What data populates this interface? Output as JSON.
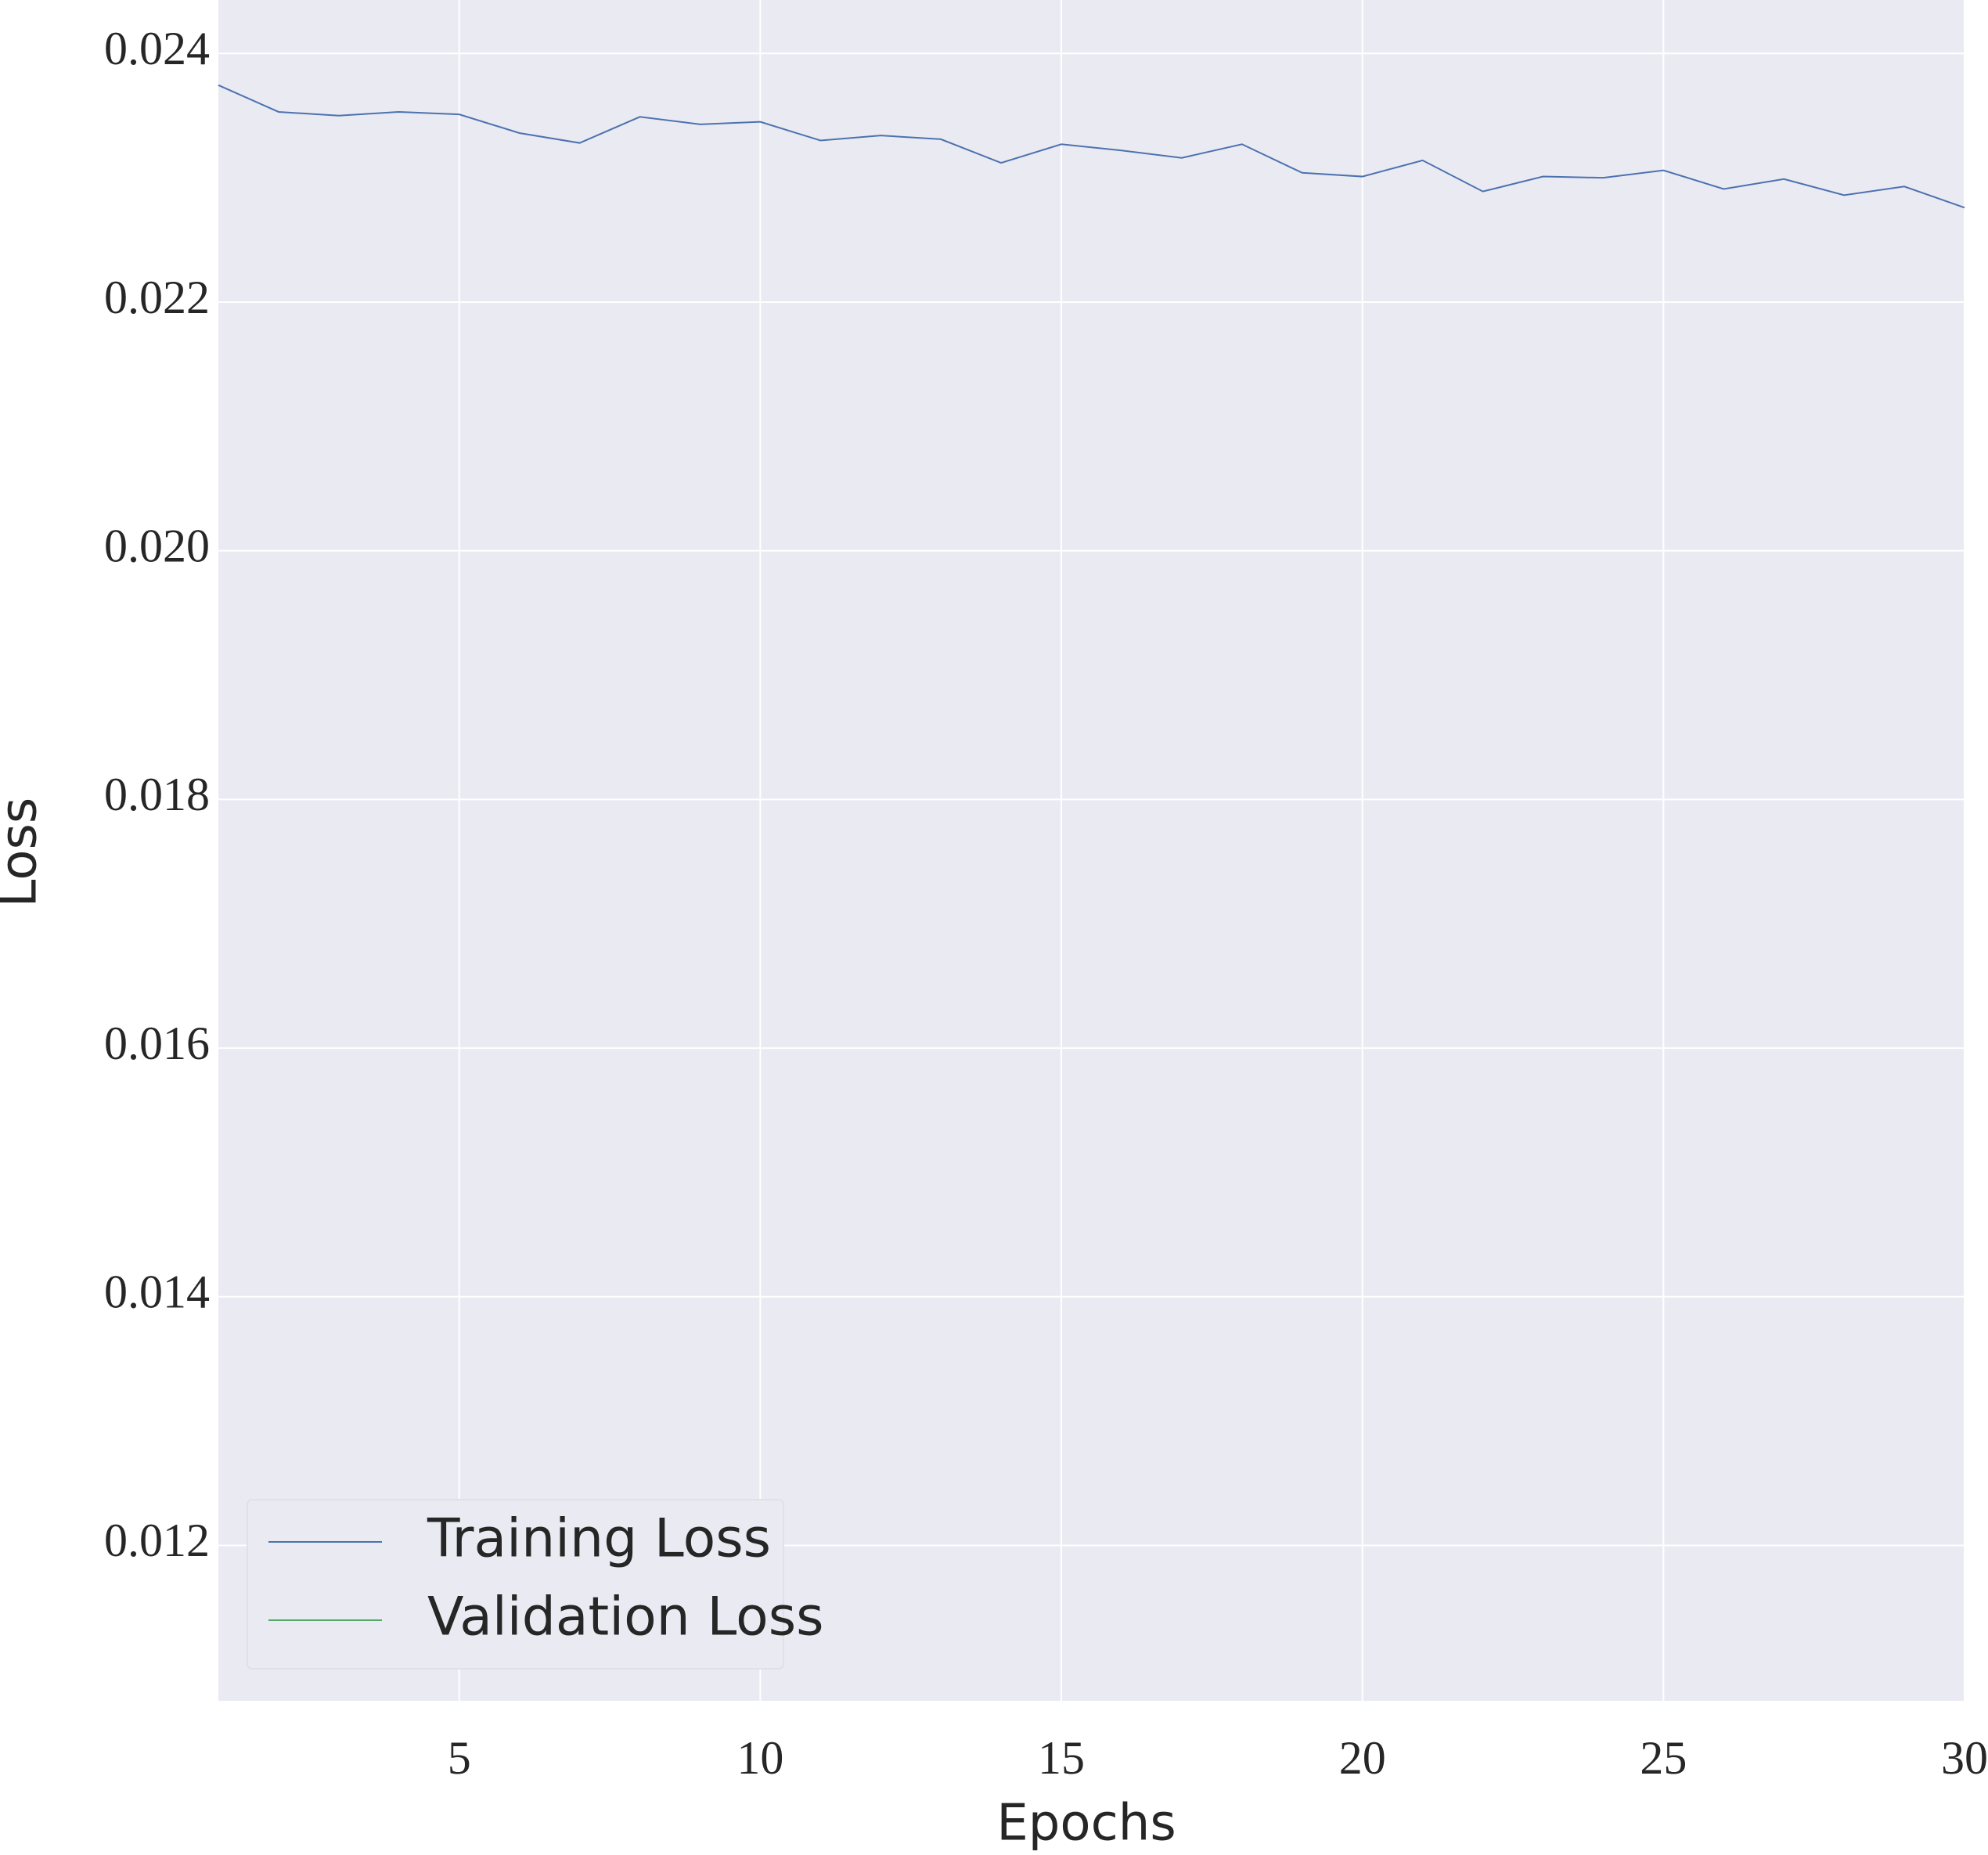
{
  "chart_data": {
    "type": "line",
    "xlabel": "Epochs",
    "ylabel": "Loss",
    "x": [
      1,
      2,
      3,
      4,
      5,
      6,
      7,
      8,
      9,
      10,
      11,
      12,
      13,
      14,
      15,
      16,
      17,
      18,
      19,
      20,
      21,
      22,
      23,
      24,
      25,
      26,
      27,
      28,
      29,
      30
    ],
    "series": [
      {
        "name": "Training Loss",
        "color": "#4c72b0",
        "values": [
          0.023745,
          0.02353,
          0.0235,
          0.02353,
          0.02351,
          0.02336,
          0.02328,
          0.02349,
          0.02343,
          0.02345,
          0.0233,
          0.02334,
          0.02331,
          0.02312,
          0.02327,
          0.02322,
          0.02316,
          0.02327,
          0.02304,
          0.02301,
          0.02314,
          0.02289,
          0.02301,
          0.023,
          0.02306,
          0.02291,
          0.02299,
          0.02286,
          0.02293,
          0.02276
        ]
      },
      {
        "name": "Validation Loss",
        "color": "#55a868",
        "values": [
          null,
          null,
          null,
          null,
          null,
          null,
          null,
          null,
          null,
          null,
          null,
          null,
          null,
          null,
          null,
          null,
          null,
          null,
          null,
          null,
          null,
          null,
          null,
          null,
          null,
          null,
          null,
          null,
          null,
          null
        ]
      }
    ],
    "xlim": [
      1,
      30
    ],
    "xticks": [
      5,
      10,
      15,
      20,
      25,
      30
    ],
    "ylim": [
      0.01075,
      0.02443
    ],
    "yticks": [
      0.012,
      0.014,
      0.016,
      0.018,
      {
        "value": 0.02,
        "label": "0.020"
      },
      0.022,
      0.024
    ],
    "grid": true,
    "legend": "lower left"
  }
}
